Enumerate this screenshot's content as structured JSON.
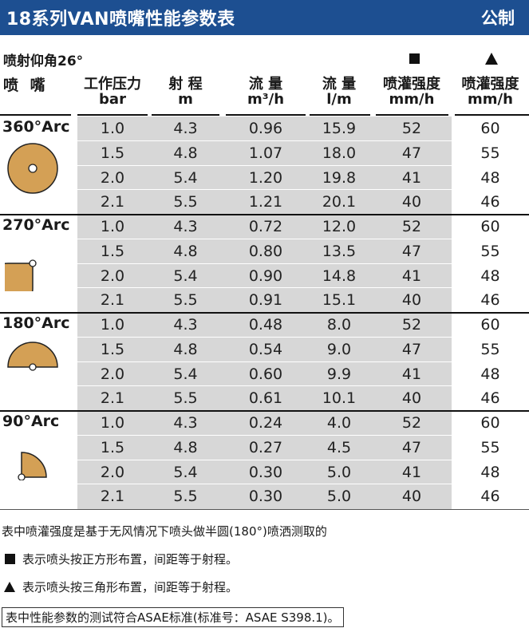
{
  "title": "18系列VAN喷嘴性能参数表",
  "unit_system": "公制",
  "angle_label": "喷射仰角26°",
  "headers": {
    "nozzle": "喷 嘴",
    "pressure": [
      "工作压力",
      "bar"
    ],
    "radius": [
      "射 程",
      "m"
    ],
    "flow_m3h": [
      "流 量",
      "m³/h"
    ],
    "flow_lm": [
      "流 量",
      "l/m"
    ],
    "precip_square": [
      "喷灌强度",
      "mm/h"
    ],
    "precip_triangle": [
      "喷灌强度",
      "mm/h"
    ]
  },
  "groups": [
    {
      "arc": "360°Arc",
      "icon": "full-circle-pattern-icon",
      "rows": [
        [
          "1.0",
          "4.3",
          "0.96",
          "15.9",
          "52",
          "60"
        ],
        [
          "1.5",
          "4.8",
          "1.07",
          "18.0",
          "47",
          "55"
        ],
        [
          "2.0",
          "5.4",
          "1.20",
          "19.8",
          "41",
          "48"
        ],
        [
          "2.1",
          "5.5",
          "1.21",
          "20.1",
          "40",
          "46"
        ]
      ]
    },
    {
      "arc": "270°Arc",
      "icon": "three-quarter-circle-pattern-icon",
      "rows": [
        [
          "1.0",
          "4.3",
          "0.72",
          "12.0",
          "52",
          "60"
        ],
        [
          "1.5",
          "4.8",
          "0.80",
          "13.5",
          "47",
          "55"
        ],
        [
          "2.0",
          "5.4",
          "0.90",
          "14.8",
          "41",
          "48"
        ],
        [
          "2.1",
          "5.5",
          "0.91",
          "15.1",
          "40",
          "46"
        ]
      ]
    },
    {
      "arc": "180°Arc",
      "icon": "half-circle-pattern-icon",
      "rows": [
        [
          "1.0",
          "4.3",
          "0.48",
          "8.0",
          "52",
          "60"
        ],
        [
          "1.5",
          "4.8",
          "0.54",
          "9.0",
          "47",
          "55"
        ],
        [
          "2.0",
          "5.4",
          "0.60",
          "9.9",
          "41",
          "48"
        ],
        [
          "2.1",
          "5.5",
          "0.61",
          "10.1",
          "40",
          "46"
        ]
      ]
    },
    {
      "arc": "90°Arc",
      "icon": "quarter-circle-pattern-icon",
      "rows": [
        [
          "1.0",
          "4.3",
          "0.24",
          "4.0",
          "52",
          "60"
        ],
        [
          "1.5",
          "4.8",
          "0.27",
          "4.5",
          "47",
          "55"
        ],
        [
          "2.0",
          "5.4",
          "0.30",
          "5.0",
          "41",
          "48"
        ],
        [
          "2.1",
          "5.5",
          "0.30",
          "5.0",
          "40",
          "46"
        ]
      ]
    }
  ],
  "notes": {
    "note1": "表中喷灌强度是基于无风情况下喷头做半圆(180°)喷洒测取的",
    "note2": "表示喷头按正方形布置，间距等于射程。",
    "note3": "表示喷头按三角形布置，间距等于射程。",
    "note4": "表中性能参数的测试符合ASAE标准(标准号：ASAE S398.1)。"
  },
  "colors": {
    "title_bar": "#1d4f91",
    "arc_fill": "#d4a055",
    "table_grey": "#d7d7d7"
  }
}
